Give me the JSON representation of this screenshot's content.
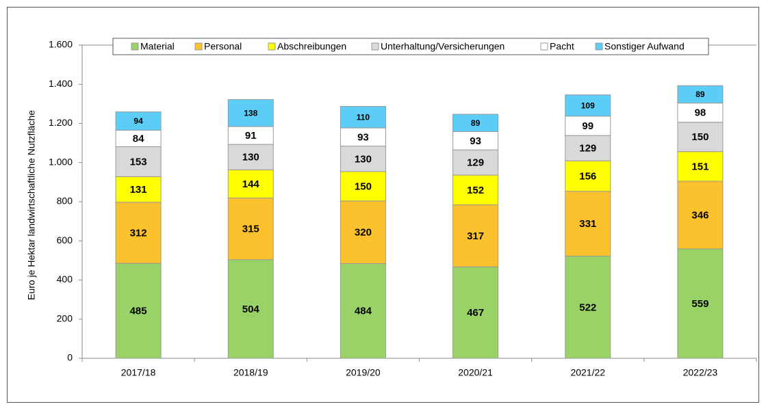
{
  "chart_data": {
    "type": "stacked_bar",
    "y_label": "Euro je Hektar landwirtschaftliche Nutzfläche",
    "categories": [
      "2017/18",
      "2018/19",
      "2019/20",
      "2020/21",
      "2021/22",
      "2022/23"
    ],
    "series": [
      {
        "name": "Material",
        "color": "#99d367",
        "values": [
          485,
          504,
          484,
          467,
          522,
          559
        ]
      },
      {
        "name": "Personal",
        "color": "#fcc22e",
        "values": [
          312,
          315,
          320,
          317,
          331,
          346
        ]
      },
      {
        "name": "Abschreibungen",
        "color": "#ffff00",
        "values": [
          131,
          144,
          150,
          152,
          156,
          151
        ]
      },
      {
        "name": "Unterhaltung/Versicherungen",
        "color": "#d9d9d9",
        "values": [
          153,
          130,
          130,
          129,
          129,
          150
        ]
      },
      {
        "name": "Pacht",
        "color": "#ffffff",
        "values": [
          84,
          91,
          93,
          93,
          99,
          98
        ]
      },
      {
        "name": "Sonstiger Aufwand",
        "color": "#5bcdf6",
        "values": [
          94,
          138,
          110,
          89,
          109,
          89
        ]
      }
    ],
    "ylim": [
      0,
      1600
    ],
    "yticks": [
      0,
      200,
      400,
      600,
      800,
      {
        "value": 1000,
        "label": "1.000"
      },
      {
        "value": 1200,
        "label": "1.200"
      },
      {
        "value": 1400,
        "label": "1.400"
      },
      {
        "value": 1600,
        "label": "1.600"
      }
    ],
    "grid": false,
    "legend": "top"
  }
}
